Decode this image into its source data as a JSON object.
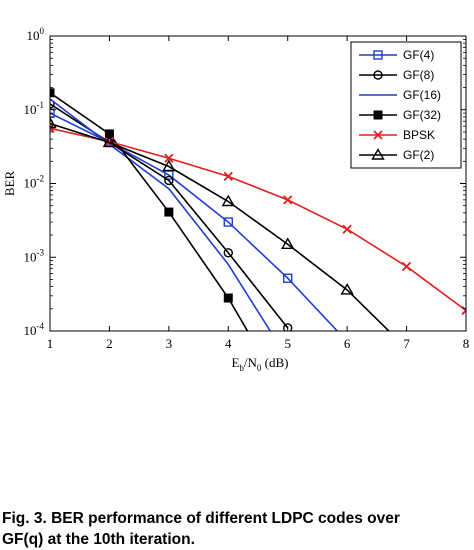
{
  "chart_data": {
    "type": "line",
    "title": "",
    "xlabel": "E_b/N_0 (dB)",
    "xlabel_parts": {
      "e": "E",
      "e_sub": "b",
      "slash": "/N",
      "n_sub": "0",
      "unit": " (dB)"
    },
    "ylabel": "BER",
    "xlim": [
      1,
      8
    ],
    "ylim": [
      0.0001,
      1
    ],
    "yscale": "log",
    "x_ticks": [
      "1",
      "2",
      "3",
      "4",
      "5",
      "6",
      "7",
      "8"
    ],
    "y_ticks": [
      {
        "base": "10",
        "exp": "0"
      },
      {
        "base": "10",
        "exp": "-1"
      },
      {
        "base": "10",
        "exp": "-2"
      },
      {
        "base": "10",
        "exp": "-3"
      },
      {
        "base": "10",
        "exp": "-4"
      }
    ],
    "legend_position": "top-right",
    "series": [
      {
        "name": "GF(4)",
        "color": "#1f3fd0",
        "marker": "square-open",
        "x": [
          1,
          2,
          3,
          4,
          5,
          6
        ],
        "y": [
          0.09,
          0.036,
          0.013,
          0.003,
          0.00052,
          7.2e-05
        ]
      },
      {
        "name": "GF(8)",
        "color": "#000000",
        "marker": "circle-open",
        "x": [
          1,
          2,
          3,
          4,
          5
        ],
        "y": [
          0.12,
          0.036,
          0.011,
          0.00115,
          0.00011
        ]
      },
      {
        "name": "GF(16)",
        "color": "#1f3fd0",
        "marker": "none",
        "x": [
          1,
          2,
          3,
          4,
          5
        ],
        "y": [
          0.14,
          0.034,
          0.0085,
          0.0008,
          4.2e-05
        ]
      },
      {
        "name": "GF(32)",
        "color": "#000000",
        "marker": "square-filled",
        "x": [
          1,
          2,
          3,
          4,
          4.5
        ],
        "y": [
          0.17,
          0.047,
          0.0041,
          0.00028,
          5.7e-05
        ]
      },
      {
        "name": "BPSK",
        "color": "#e0201e",
        "marker": "x",
        "x": [
          1,
          2,
          3,
          4,
          5,
          6,
          7,
          8
        ],
        "y": [
          0.056,
          0.037,
          0.022,
          0.0125,
          0.006,
          0.0024,
          0.00075,
          0.00019
        ]
      },
      {
        "name": "GF(2)",
        "color": "#000000",
        "marker": "triangle-open",
        "x": [
          1,
          2,
          3,
          4,
          5,
          6,
          7
        ],
        "y": [
          0.065,
          0.036,
          0.017,
          0.0057,
          0.0015,
          0.00036,
          5.8e-05
        ]
      }
    ]
  },
  "caption": "Fig. 3. BER performance of different LDPC codes over\nGF(q) at the 10th iteration."
}
